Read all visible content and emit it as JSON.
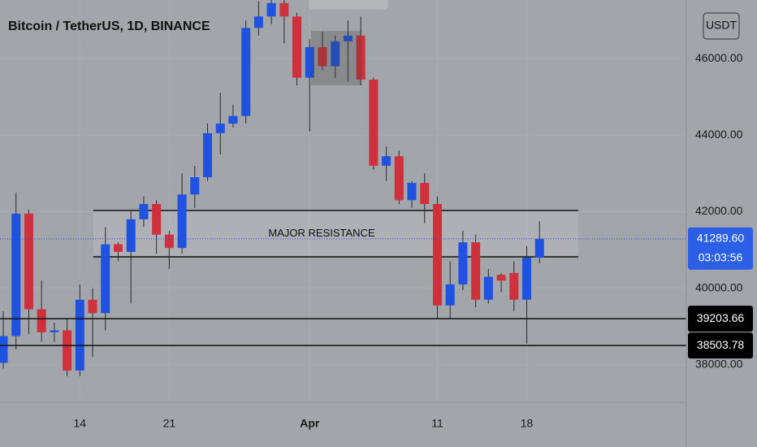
{
  "chart_data": {
    "type": "candlestick",
    "title": "Bitcoin / TetherUS, 1D, BINANCE",
    "currency": "USDT",
    "categories": [
      null,
      null,
      null,
      null,
      null,
      null,
      "14",
      null,
      null,
      null,
      null,
      null,
      null,
      "21",
      null,
      null,
      null,
      null,
      null,
      null,
      null,
      null,
      null,
      null,
      "Apr",
      null,
      null,
      null,
      null,
      null,
      null,
      null,
      null,
      null,
      "11",
      null,
      null,
      null,
      null,
      null,
      null,
      "18",
      null
    ],
    "open": [
      38050,
      38750,
      41950,
      39450,
      38850,
      38900,
      37850,
      39700,
      39350,
      41150,
      40950,
      41800,
      42200,
      41400,
      41050,
      42450,
      42900,
      44050,
      44300,
      44500,
      46800,
      47100,
      47450,
      47100,
      45500,
      46300,
      45800,
      46450,
      46600,
      45450,
      43200,
      43450,
      42300,
      42750,
      42200,
      39550,
      40100,
      41200,
      39700,
      40350,
      40400,
      39700,
      40800
    ],
    "high": [
      39400,
      42500,
      42050,
      40200,
      39100,
      39200,
      40100,
      40000,
      41600,
      41200,
      42000,
      42400,
      42300,
      41500,
      43000,
      43200,
      44300,
      45100,
      44800,
      47000,
      47500,
      47530,
      47530,
      47200,
      46500,
      46700,
      46600,
      47000,
      47100,
      45500,
      43700,
      43600,
      42800,
      43000,
      42400,
      40700,
      41500,
      41400,
      40500,
      40400,
      40700,
      41100,
      41750
    ],
    "low": [
      37900,
      38400,
      38800,
      38600,
      38600,
      37700,
      37700,
      38200,
      38900,
      40700,
      39600,
      41600,
      40900,
      40500,
      40900,
      42100,
      42800,
      43500,
      44200,
      44300,
      46600,
      46900,
      46400,
      45300,
      44100,
      45700,
      45500,
      45400,
      45300,
      43100,
      42800,
      42200,
      42100,
      41700,
      39200,
      39200,
      39950,
      39500,
      39600,
      39900,
      39400,
      38550,
      40650
    ],
    "close": [
      38750,
      41950,
      39450,
      38850,
      38900,
      37850,
      39700,
      39350,
      41150,
      40950,
      41800,
      42200,
      41400,
      41050,
      42450,
      42900,
      44050,
      44300,
      44500,
      46800,
      47100,
      47450,
      47100,
      45500,
      46300,
      45800,
      46450,
      46600,
      45450,
      43200,
      43450,
      42300,
      42750,
      42200,
      39550,
      40100,
      41200,
      39700,
      40300,
      40200,
      39700,
      40800,
      41290
    ],
    "up_color": "#1f52e0",
    "down_color": "#d0303b",
    "ylim": [
      37020,
      47530
    ],
    "yticks": [
      {
        "value": 38000,
        "label": "38000.00"
      },
      {
        "value": 40000,
        "label": "40000.00"
      },
      {
        "value": 42000,
        "label": "42000.00"
      },
      {
        "value": 44000,
        "label": "44000.00"
      },
      {
        "value": 46000,
        "label": "46000.00"
      }
    ],
    "grid": true,
    "resistance_zone": {
      "label": "MAJOR RESISTANCE",
      "high": 42030,
      "low": 40820
    },
    "levels": [
      39203.66,
      38503.78
    ],
    "current_price": {
      "value": 41289.6,
      "label": "41289.60"
    },
    "countdown": "03:03:56"
  }
}
